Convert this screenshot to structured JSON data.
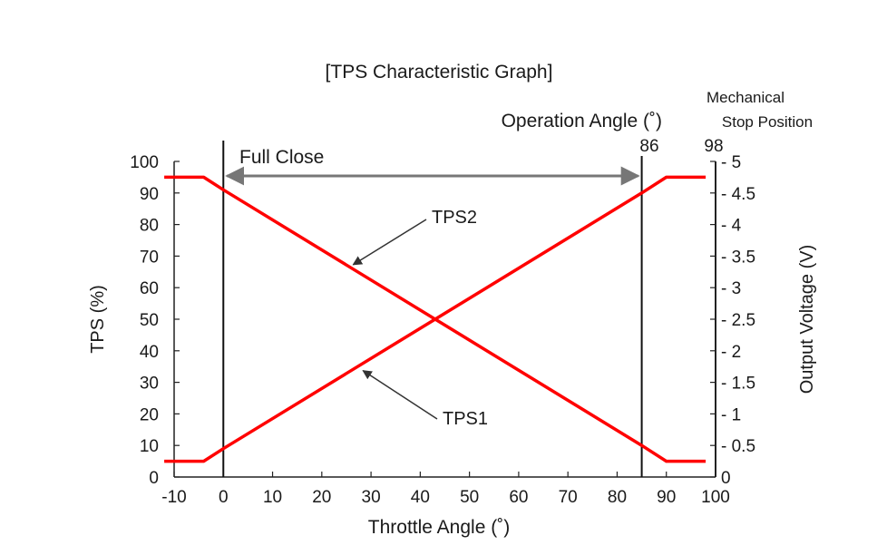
{
  "chart_data": {
    "type": "line",
    "title": "[TPS Characteristic Graph]",
    "xlabel": "Throttle Angle (˚)",
    "ylabel_left": "TPS (%)",
    "ylabel_right": "Output Voltage (V)",
    "xlim": [
      -10,
      100
    ],
    "ylim_left": [
      0,
      100
    ],
    "ylim_right": [
      0,
      5
    ],
    "x_ticks": [
      "-10",
      "0",
      "10",
      "20",
      "30",
      "40",
      "50",
      "60",
      "70",
      "80",
      "90",
      "100"
    ],
    "y_ticks_left": [
      "0",
      "10",
      "20",
      "30",
      "40",
      "50",
      "60",
      "70",
      "80",
      "90",
      "100"
    ],
    "y_ticks_right": [
      "0",
      "0.5",
      "1",
      "1.5",
      "2",
      "2.5",
      "3",
      "3.5",
      "4",
      "4.5",
      "5"
    ],
    "grid": false,
    "series": [
      {
        "name": "TPS1",
        "color": "#ff0000",
        "x": [
          -12,
          -4,
          0,
          85,
          90,
          98
        ],
        "y": [
          5,
          5,
          9,
          90,
          95,
          95
        ]
      },
      {
        "name": "TPS2",
        "color": "#ff0000",
        "x": [
          -12,
          -4,
          0,
          85,
          90,
          98
        ],
        "y": [
          95,
          95,
          91,
          10,
          5,
          5
        ]
      }
    ],
    "annotations": {
      "full_close_label": "Full Close",
      "operation_angle_label": "Operation Angle (˚)",
      "operation_angle_value": "86",
      "mechanical_stop_label_line1": "Mechanical",
      "mechanical_stop_label_line2": "Stop Position",
      "mechanical_stop_value": "98",
      "full_close_x": 0,
      "operation_end_x": 85,
      "mechanical_stop_x": 98,
      "tps2_arrow_target": [
        26,
        67
      ],
      "tps1_arrow_target": [
        28,
        34
      ]
    }
  }
}
